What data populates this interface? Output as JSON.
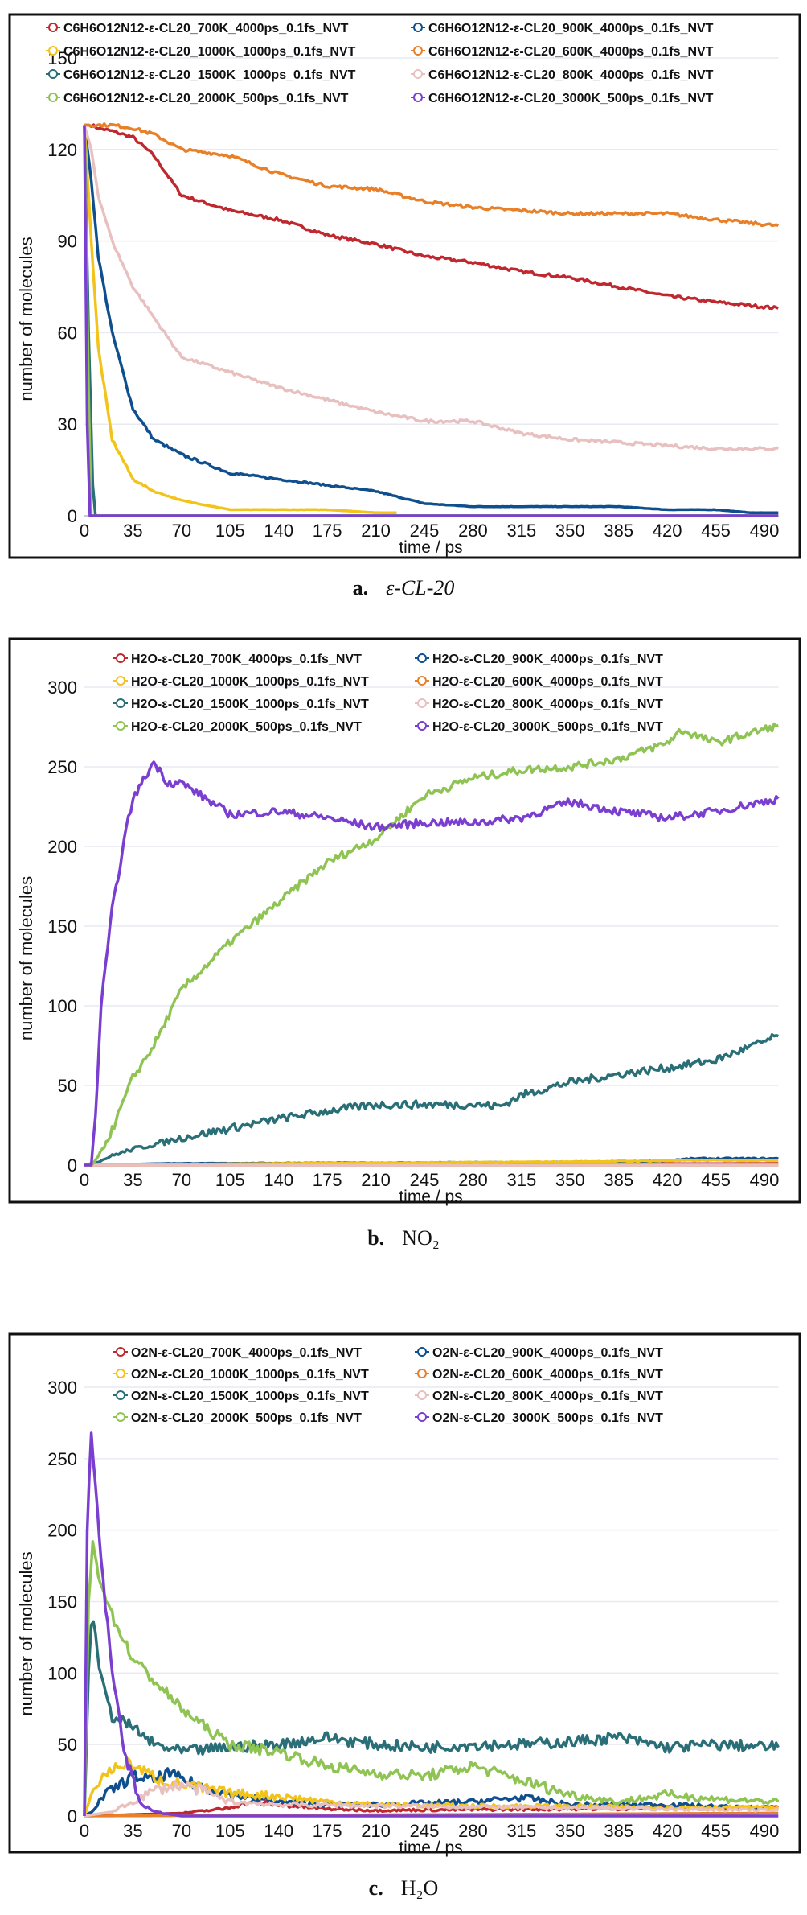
{
  "chart_data": [
    {
      "type": "line",
      "caption": {
        "label": "a.",
        "text": "ε-CL-20"
      },
      "xlabel": "time / ps",
      "ylabel": "number of molecules",
      "xlim": [
        0,
        500
      ],
      "ylim": [
        0,
        150
      ],
      "xticks": [
        0,
        35,
        70,
        105,
        140,
        175,
        210,
        245,
        280,
        315,
        350,
        385,
        420,
        455,
        490
      ],
      "yticks": [
        0,
        30,
        60,
        90,
        120,
        150
      ],
      "grid": true,
      "legend": "top",
      "series": [
        {
          "name": "C6H6O12N12-ε-CL20_700K_4000ps_0.1fs_NVT",
          "color": "#c0282f",
          "x": [
            0,
            5,
            10,
            20,
            35,
            50,
            70,
            105,
            140,
            175,
            210,
            245,
            280,
            315,
            350,
            385,
            420,
            455,
            500
          ],
          "y": [
            128,
            128,
            127,
            126,
            124,
            118,
            105,
            100,
            97,
            92,
            89,
            85,
            83,
            80,
            78,
            75,
            72,
            70,
            68
          ]
        },
        {
          "name": "C6H6O12N12-ε-CL20_900K_4000ps_0.1fs_NVT",
          "color": "#0f4f8e",
          "x": [
            0,
            5,
            10,
            20,
            35,
            50,
            70,
            105,
            140,
            175,
            210,
            245,
            280,
            315,
            350,
            385,
            420,
            455,
            480,
            500
          ],
          "y": [
            128,
            110,
            85,
            60,
            35,
            25,
            20,
            14,
            12,
            10,
            8,
            4,
            3,
            3,
            3,
            3,
            2,
            2,
            1,
            1
          ]
        },
        {
          "name": "C6H6O12N12-ε-CL20_1000K_1000ps_0.1fs_NVT",
          "color": "#f2c31a",
          "x": [
            0,
            5,
            10,
            20,
            35,
            50,
            70,
            105,
            140,
            175,
            210,
            225
          ],
          "y": [
            128,
            90,
            55,
            25,
            12,
            8,
            5,
            2,
            2,
            2,
            1,
            1
          ]
        },
        {
          "name": "C6H6O12N12-ε-CL20_600K_4000ps_0.1fs_NVT",
          "color": "#e8802a",
          "x": [
            0,
            5,
            10,
            20,
            35,
            50,
            70,
            105,
            140,
            175,
            210,
            245,
            280,
            315,
            350,
            385,
            420,
            455,
            500
          ],
          "y": [
            128,
            128,
            128,
            128,
            127,
            125,
            120,
            118,
            112,
            108,
            107,
            103,
            101,
            100,
            99,
            99,
            99,
            97,
            95
          ]
        },
        {
          "name": "C6H6O12N12-ε-CL20_1500K_1000ps_0.1fs_NVT",
          "color": "#2a6f77",
          "x": [
            0,
            3,
            6,
            8,
            500
          ],
          "y": [
            128,
            60,
            10,
            0,
            0
          ]
        },
        {
          "name": "C6H6O12N12-ε-CL20_800K_4000ps_0.1fs_NVT",
          "color": "#e8c0c0",
          "x": [
            0,
            5,
            10,
            20,
            35,
            50,
            70,
            105,
            140,
            175,
            210,
            245,
            280,
            315,
            350,
            385,
            420,
            455,
            500
          ],
          "y": [
            128,
            120,
            105,
            90,
            75,
            65,
            52,
            47,
            42,
            38,
            34,
            31,
            31,
            27,
            25,
            24,
            23,
            22,
            22
          ]
        },
        {
          "name": "C6H6O12N12-ε-CL20_2000K_500ps_0.1fs_NVT",
          "color": "#8fc454",
          "x": [
            0,
            3,
            5,
            500
          ],
          "y": [
            128,
            40,
            0,
            0
          ]
        },
        {
          "name": "C6H6O12N12-ε-CL20_3000K_500ps_0.1fs_NVT",
          "color": "#7a3ed1",
          "x": [
            0,
            2,
            4,
            500
          ],
          "y": [
            128,
            30,
            0,
            0
          ]
        }
      ]
    },
    {
      "type": "line",
      "caption": {
        "label": "b.",
        "text": "NO₂"
      },
      "xlabel": "time / ps",
      "ylabel": "number of molecules",
      "xlim": [
        0,
        500
      ],
      "ylim": [
        0,
        300
      ],
      "xticks": [
        0,
        35,
        70,
        105,
        140,
        175,
        210,
        245,
        280,
        315,
        350,
        385,
        420,
        455,
        490
      ],
      "yticks": [
        0,
        50,
        100,
        150,
        200,
        250,
        300
      ],
      "grid": true,
      "legend": "top",
      "series": [
        {
          "name": "H2O-ε-CL20_700K_4000ps_0.1fs_NVT",
          "color": "#c0282f",
          "x": [
            0,
            500
          ],
          "y": [
            0,
            1
          ]
        },
        {
          "name": "H2O-ε-CL20_900K_4000ps_0.1fs_NVT",
          "color": "#0f4f8e",
          "x": [
            0,
            60,
            400,
            440,
            500
          ],
          "y": [
            0,
            1,
            2,
            4,
            4
          ]
        },
        {
          "name": "H2O-ε-CL20_1000K_1000ps_0.1fs_NVT",
          "color": "#f2c31a",
          "x": [
            0,
            130,
            340,
            440,
            500
          ],
          "y": [
            0,
            1,
            2,
            3,
            3
          ]
        },
        {
          "name": "H2O-ε-CL20_600K_4000ps_0.1fs_NVT",
          "color": "#e8802a",
          "x": [
            0,
            500
          ],
          "y": [
            0,
            0
          ]
        },
        {
          "name": "H2O-ε-CL20_1500K_1000ps_0.1fs_NVT",
          "color": "#2a6f77",
          "x": [
            0,
            10,
            20,
            35,
            50,
            70,
            105,
            140,
            175,
            210,
            245,
            280,
            300,
            315,
            350,
            385,
            420,
            455,
            500
          ],
          "y": [
            0,
            2,
            6,
            10,
            13,
            17,
            23,
            29,
            34,
            38,
            38,
            38,
            37,
            44,
            52,
            57,
            61,
            66,
            81
          ]
        },
        {
          "name": "H2O-ε-CL20_800K_4000ps_0.1fs_NVT",
          "color": "#e8c0c0",
          "x": [
            0,
            500
          ],
          "y": [
            0,
            0
          ]
        },
        {
          "name": "H2O-ε-CL20_2000K_500ps_0.1fs_NVT",
          "color": "#8fc454",
          "x": [
            0,
            5,
            10,
            20,
            35,
            50,
            70,
            105,
            140,
            175,
            210,
            245,
            280,
            315,
            350,
            385,
            420,
            430,
            455,
            500
          ],
          "y": [
            0,
            0,
            5,
            22,
            55,
            75,
            110,
            140,
            165,
            190,
            205,
            232,
            243,
            248,
            250,
            255,
            265,
            273,
            265,
            276
          ]
        },
        {
          "name": "H2O-ε-CL20_3000K_500ps_0.1fs_NVT",
          "color": "#7a3ed1",
          "x": [
            0,
            5,
            8,
            12,
            20,
            30,
            35,
            50,
            60,
            70,
            105,
            140,
            175,
            210,
            245,
            280,
            315,
            350,
            385,
            420,
            455,
            500
          ],
          "y": [
            0,
            0,
            30,
            100,
            160,
            210,
            230,
            253,
            240,
            240,
            220,
            222,
            218,
            212,
            215,
            215,
            218,
            228,
            222,
            218,
            222,
            230
          ]
        }
      ]
    },
    {
      "type": "line",
      "caption": {
        "label": "c.",
        "text": "H₂O"
      },
      "xlabel": "time / ps",
      "ylabel": "number of molecules",
      "xlim": [
        0,
        500
      ],
      "ylim": [
        0,
        300
      ],
      "xticks": [
        0,
        35,
        70,
        105,
        140,
        175,
        210,
        245,
        280,
        315,
        350,
        385,
        420,
        455,
        490
      ],
      "yticks": [
        0,
        50,
        100,
        150,
        200,
        250,
        300
      ],
      "grid": true,
      "legend": "top",
      "series": [
        {
          "name": "O2N-ε-CL20_700K_4000ps_0.1fs_NVT",
          "color": "#c0282f",
          "x": [
            0,
            70,
            100,
            120,
            140,
            175,
            210,
            500
          ],
          "y": [
            0,
            2,
            5,
            10,
            8,
            5,
            4,
            6
          ]
        },
        {
          "name": "O2N-ε-CL20_900K_4000ps_0.1fs_NVT",
          "color": "#0f4f8e",
          "x": [
            0,
            5,
            15,
            35,
            50,
            60,
            80,
            105,
            140,
            175,
            210,
            245,
            280,
            315,
            350,
            420,
            500
          ],
          "y": [
            0,
            3,
            15,
            28,
            25,
            30,
            22,
            15,
            10,
            8,
            8,
            9,
            10,
            13,
            8,
            8,
            5
          ]
        },
        {
          "name": "O2N-ε-CL20_1000K_1000ps_0.1fs_NVT",
          "color": "#f2c31a",
          "x": [
            0,
            5,
            15,
            30,
            40,
            55,
            70,
            105,
            140,
            175,
            210,
            280,
            350,
            420,
            500
          ],
          "y": [
            0,
            15,
            30,
            37,
            33,
            25,
            22,
            16,
            14,
            10,
            8,
            7,
            7,
            6,
            6
          ]
        },
        {
          "name": "O2N-ε-CL20_600K_4000ps_0.1fs_NVT",
          "color": "#e8802a",
          "x": [
            0,
            500
          ],
          "y": [
            0,
            2
          ]
        },
        {
          "name": "O2N-ε-CL20_1500K_1000ps_0.1fs_NVT",
          "color": "#2a6f77",
          "x": [
            0,
            3,
            5,
            8,
            12,
            20,
            35,
            50,
            70,
            105,
            140,
            175,
            210,
            245,
            280,
            315,
            350,
            385,
            420,
            455,
            500
          ],
          "y": [
            0,
            100,
            135,
            130,
            95,
            70,
            62,
            50,
            45,
            48,
            50,
            55,
            50,
            48,
            50,
            50,
            52,
            55,
            48,
            50,
            48
          ]
        },
        {
          "name": "O2N-ε-CL20_800K_4000ps_0.1fs_NVT",
          "color": "#e8c0c0",
          "x": [
            0,
            20,
            35,
            50,
            70,
            90,
            105,
            140,
            500
          ],
          "y": [
            0,
            3,
            10,
            18,
            22,
            16,
            10,
            8,
            4
          ]
        },
        {
          "name": "O2N-ε-CL20_2000K_500ps_0.1fs_NVT",
          "color": "#8fc454",
          "x": [
            0,
            3,
            6,
            10,
            20,
            35,
            50,
            70,
            90,
            105,
            140,
            175,
            210,
            245,
            280,
            315,
            350,
            385,
            420,
            455,
            500
          ],
          "y": [
            0,
            150,
            190,
            170,
            140,
            110,
            95,
            75,
            60,
            50,
            45,
            35,
            30,
            28,
            35,
            25,
            15,
            10,
            15,
            12,
            10
          ]
        },
        {
          "name": "O2N-ε-CL20_3000K_500ps_0.1fs_NVT",
          "color": "#7a3ed1",
          "x": [
            0,
            2,
            5,
            8,
            12,
            20,
            30,
            40,
            50,
            70,
            500
          ],
          "y": [
            0,
            200,
            267,
            230,
            180,
            100,
            40,
            10,
            3,
            0,
            0
          ]
        }
      ]
    }
  ]
}
